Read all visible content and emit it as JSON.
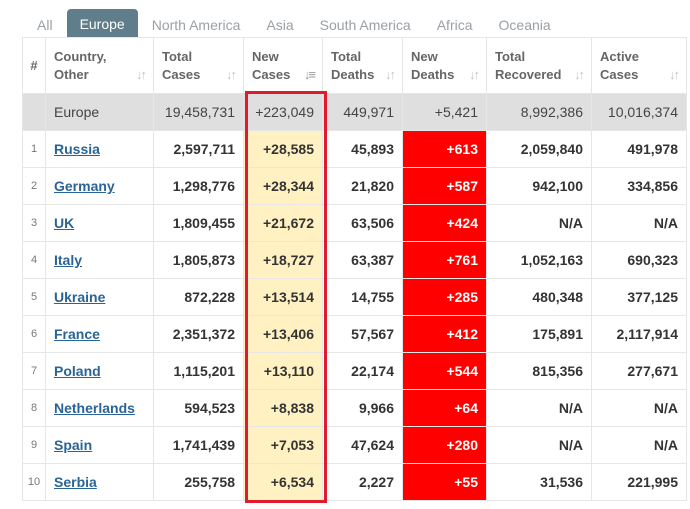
{
  "tabs": [
    "All",
    "Europe",
    "North America",
    "Asia",
    "South America",
    "Africa",
    "Oceania"
  ],
  "active_tab": "Europe",
  "columns": {
    "num": "#",
    "country_1": "Country,",
    "country_2": "Other",
    "total_cases_1": "Total",
    "total_cases_2": "Cases",
    "new_cases_1": "New",
    "new_cases_2": "Cases",
    "total_deaths_1": "Total",
    "total_deaths_2": "Deaths",
    "new_deaths_1": "New",
    "new_deaths_2": "Deaths",
    "total_recovered_1": "Total",
    "total_recovered_2": "Recovered",
    "active_cases_1": "Active",
    "active_cases_2": "Cases"
  },
  "sort_icon": "sort-arrows-icon",
  "total_row": {
    "country": "Europe",
    "total_cases": "19,458,731",
    "new_cases": "+223,049",
    "total_deaths": "449,971",
    "new_deaths": "+5,421",
    "total_recovered": "8,992,386",
    "active_cases": "10,016,374"
  },
  "rows": [
    {
      "num": "1",
      "country": "Russia",
      "total_cases": "2,597,711",
      "new_cases": "+28,585",
      "total_deaths": "45,893",
      "new_deaths": "+613",
      "total_recovered": "2,059,840",
      "active_cases": "491,978"
    },
    {
      "num": "2",
      "country": "Germany",
      "total_cases": "1,298,776",
      "new_cases": "+28,344",
      "total_deaths": "21,820",
      "new_deaths": "+587",
      "total_recovered": "942,100",
      "active_cases": "334,856"
    },
    {
      "num": "3",
      "country": "UK",
      "total_cases": "1,809,455",
      "new_cases": "+21,672",
      "total_deaths": "63,506",
      "new_deaths": "+424",
      "total_recovered": "N/A",
      "active_cases": "N/A"
    },
    {
      "num": "4",
      "country": "Italy",
      "total_cases": "1,805,873",
      "new_cases": "+18,727",
      "total_deaths": "63,387",
      "new_deaths": "+761",
      "total_recovered": "1,052,163",
      "active_cases": "690,323"
    },
    {
      "num": "5",
      "country": "Ukraine",
      "total_cases": "872,228",
      "new_cases": "+13,514",
      "total_deaths": "14,755",
      "new_deaths": "+285",
      "total_recovered": "480,348",
      "active_cases": "377,125"
    },
    {
      "num": "6",
      "country": "France",
      "total_cases": "2,351,372",
      "new_cases": "+13,406",
      "total_deaths": "57,567",
      "new_deaths": "+412",
      "total_recovered": "175,891",
      "active_cases": "2,117,914"
    },
    {
      "num": "7",
      "country": "Poland",
      "total_cases": "1,115,201",
      "new_cases": "+13,110",
      "total_deaths": "22,174",
      "new_deaths": "+544",
      "total_recovered": "815,356",
      "active_cases": "277,671"
    },
    {
      "num": "8",
      "country": "Netherlands",
      "total_cases": "594,523",
      "new_cases": "+8,838",
      "total_deaths": "9,966",
      "new_deaths": "+64",
      "total_recovered": "N/A",
      "active_cases": "N/A"
    },
    {
      "num": "9",
      "country": "Spain",
      "total_cases": "1,741,439",
      "new_cases": "+7,053",
      "total_deaths": "47,624",
      "new_deaths": "+280",
      "total_recovered": "N/A",
      "active_cases": "N/A"
    },
    {
      "num": "10",
      "country": "Serbia",
      "total_cases": "255,758",
      "new_cases": "+6,534",
      "total_deaths": "2,227",
      "new_deaths": "+55",
      "total_recovered": "31,536",
      "active_cases": "221,995"
    }
  ],
  "colors": {
    "tab_active_bg": "#607d8b",
    "new_cases_bg": "#fff1c1",
    "new_deaths_bg": "#ff0000",
    "total_row_bg": "#dfdfdf",
    "highlight_border": "#e01b2d",
    "link": "#2a6496"
  }
}
